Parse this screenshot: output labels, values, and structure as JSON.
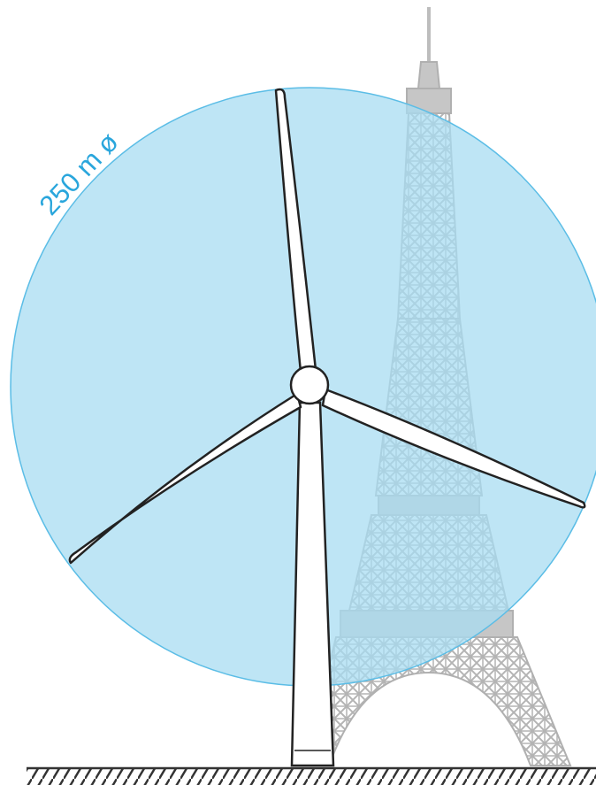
{
  "diagram": {
    "label": "250 m ø"
  }
}
